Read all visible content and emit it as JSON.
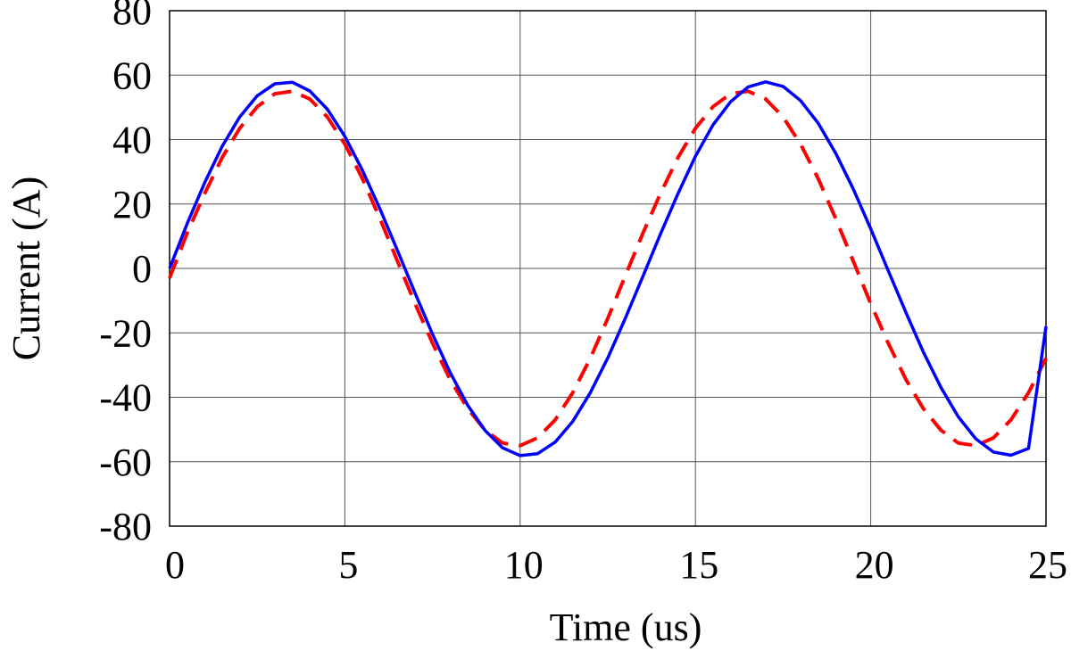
{
  "chart_data": {
    "type": "line",
    "title": "",
    "xlabel": "Time (us)",
    "ylabel": "Current (A)",
    "xlim": [
      0,
      25
    ],
    "ylim": [
      -80,
      80
    ],
    "xticks": [
      "0",
      "5",
      "10",
      "15",
      "20",
      "25"
    ],
    "yticks": [
      "80",
      "60",
      "40",
      "20",
      "0",
      "-20",
      "-40",
      "-60",
      "-80"
    ],
    "grid": true,
    "legend": "none",
    "series": [
      {
        "color": "#ff0000",
        "style": "dashed",
        "x": [
          0,
          0.5,
          1,
          1.5,
          2,
          2.5,
          3,
          3.5,
          4,
          4.5,
          5,
          5.5,
          6,
          6.5,
          7,
          7.5,
          8,
          8.5,
          9,
          9.5,
          10,
          10.5,
          11,
          11.5,
          12,
          12.5,
          13,
          13.5,
          14,
          14.5,
          15,
          15.5,
          16,
          16.5,
          17,
          17.5,
          18,
          18.5,
          19,
          19.5,
          20,
          20.5,
          21,
          21.5,
          22,
          22.5,
          23,
          23.5,
          24,
          24.5,
          25
        ],
        "values": [
          -3,
          10.9,
          23.2,
          34.4,
          43.5,
          50.2,
          54.2,
          55.0,
          52.6,
          47.0,
          38.6,
          27.9,
          15.5,
          2.3,
          -10.9,
          -23.2,
          -34.4,
          -43.5,
          -50.2,
          -54.2,
          -55.0,
          -52.6,
          -47.0,
          -38.6,
          -27.9,
          -15.5,
          -2.3,
          10.9,
          23.2,
          34.4,
          43.5,
          50.2,
          54.2,
          55.0,
          52.6,
          47.0,
          38.6,
          27.9,
          15.5,
          2.3,
          -10.9,
          -23.2,
          -34.4,
          -43.5,
          -50.2,
          -54.2,
          -55.0,
          -52.6,
          -47.0,
          -38.6,
          -27.9
        ]
      },
      {
        "color": "#0000ff",
        "style": "solid",
        "x": [
          0,
          0.5,
          1,
          1.5,
          2,
          2.5,
          3,
          3.5,
          4,
          4.5,
          5,
          5.5,
          6,
          6.5,
          7,
          7.5,
          8,
          8.5,
          9,
          9.5,
          10,
          10.5,
          11,
          11.5,
          12,
          12.5,
          13,
          13.5,
          14,
          14.5,
          15,
          15.5,
          16,
          16.5,
          17,
          17.5,
          18,
          18.5,
          19,
          19.5,
          20,
          20.5,
          21,
          21.5,
          22,
          22.5,
          23,
          23.5,
          24,
          24.5,
          25
        ],
        "values": [
          0,
          13.8,
          26.6,
          37.9,
          47.0,
          53.6,
          57.3,
          57.8,
          55.1,
          49.4,
          41.0,
          30.5,
          18.5,
          5.6,
          -7.6,
          -20.4,
          -32.2,
          -42.4,
          -50.3,
          -55.7,
          -58.1,
          -57.5,
          -53.9,
          -47.5,
          -38.6,
          -27.8,
          -15.5,
          -2.5,
          10.6,
          23.2,
          34.8,
          44.5,
          51.7,
          56.3,
          57.9,
          56.5,
          52.1,
          45.1,
          35.8,
          24.7,
          12.3,
          -0.7,
          -13.6,
          -25.9,
          -36.9,
          -46.1,
          -52.9,
          -57.0,
          -58.0,
          -55.9,
          -18.0
        ]
      }
    ]
  }
}
